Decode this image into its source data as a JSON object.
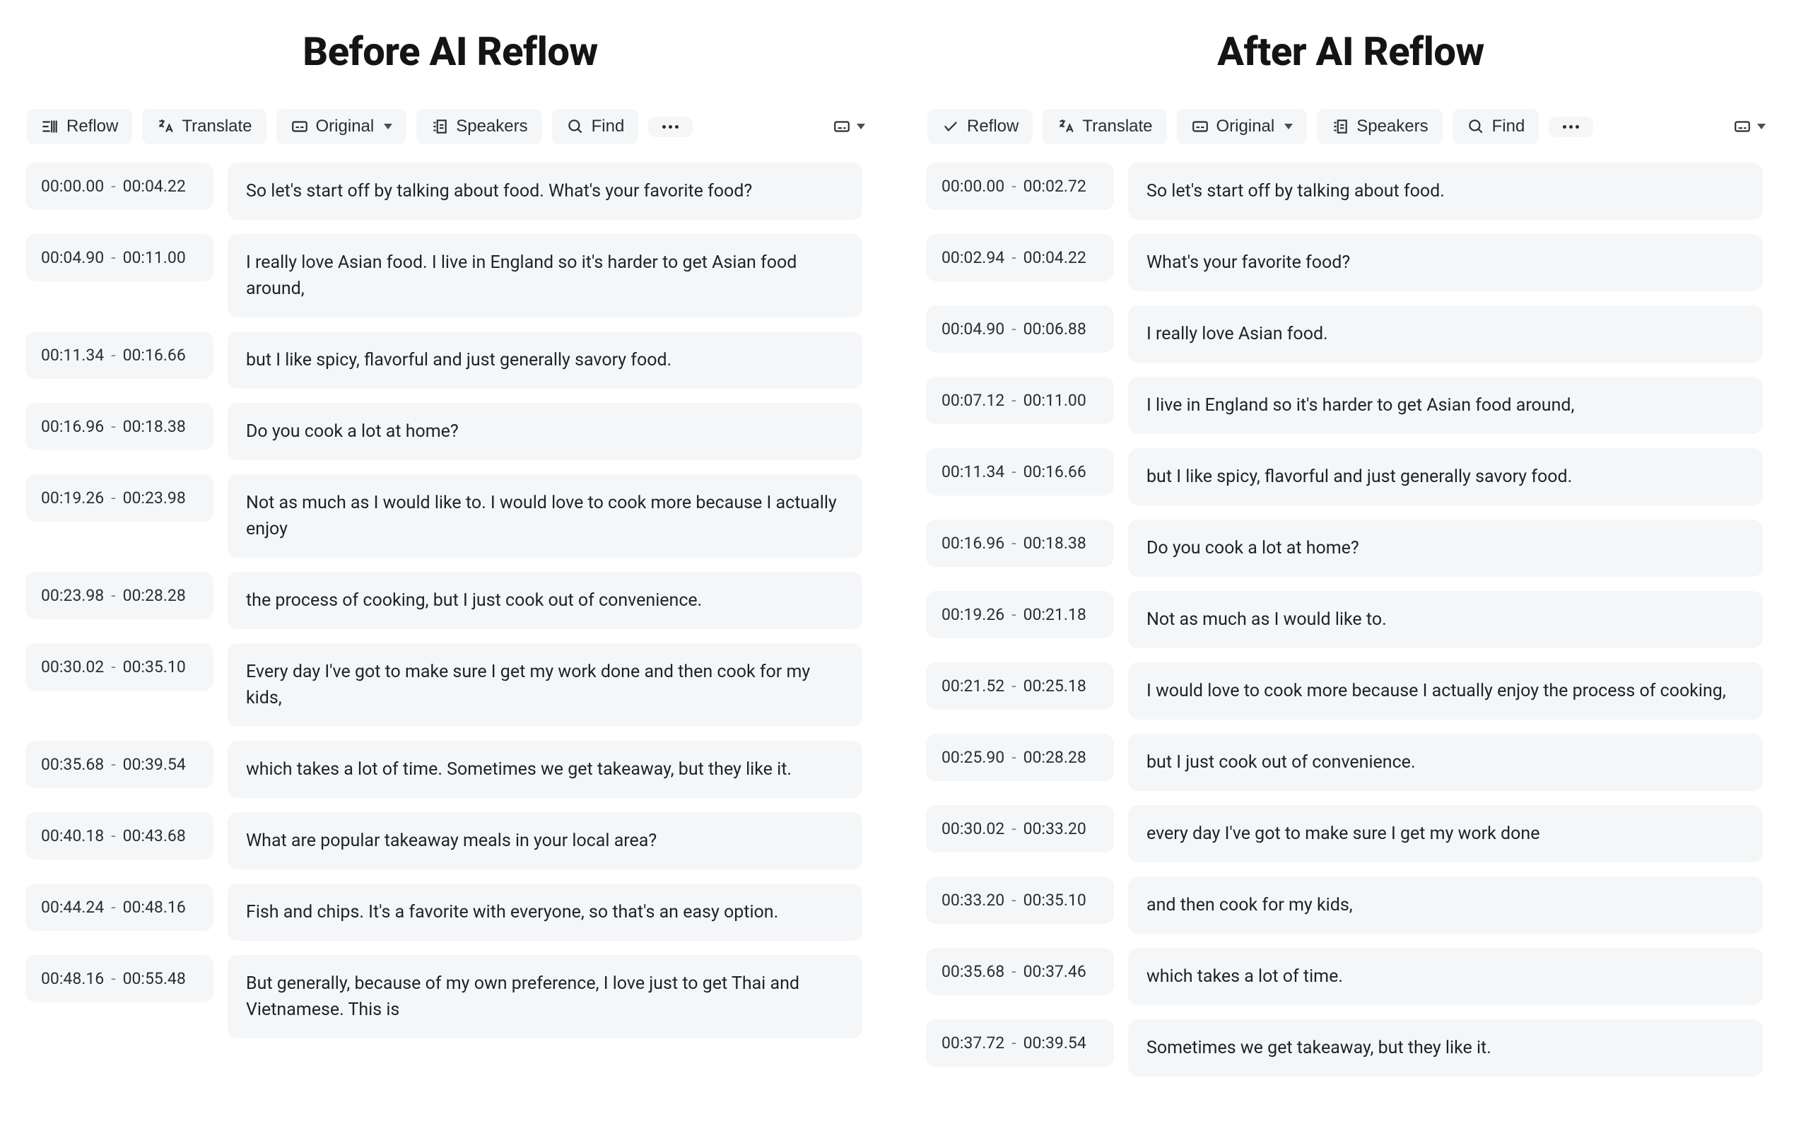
{
  "colors": {
    "panel_bg": "#f5f6f8",
    "text_primary": "#1f2226",
    "text_muted": "#7b818a",
    "scrollbar": "#9ca1a8",
    "page_bg": "#ffffff"
  },
  "left": {
    "heading": "Before AI Reflow",
    "toolbar": {
      "reflow": "Reflow",
      "translate": "Translate",
      "original": "Original",
      "speakers": "Speakers",
      "find": "Find"
    },
    "rows": [
      {
        "start": "00:00.00",
        "end": "00:04.22",
        "text": "So let's start off by talking about food. What's your favorite food?"
      },
      {
        "start": "00:04.90",
        "end": "00:11.00",
        "text": "I really love Asian food. I live in England so it's harder to get Asian food around,"
      },
      {
        "start": "00:11.34",
        "end": "00:16.66",
        "text": "but I like spicy, flavorful and just generally savory food."
      },
      {
        "start": "00:16.96",
        "end": "00:18.38",
        "text": "Do you cook a lot at home?"
      },
      {
        "start": "00:19.26",
        "end": "00:23.98",
        "text": "Not as much as I would like to. I would love to cook more because I actually enjoy"
      },
      {
        "start": "00:23.98",
        "end": "00:28.28",
        "text": "the process of cooking, but I just cook out of convenience."
      },
      {
        "start": "00:30.02",
        "end": "00:35.10",
        "text": "Every day I've got to make sure I get my work done and then cook for my kids,"
      },
      {
        "start": "00:35.68",
        "end": "00:39.54",
        "text": "which takes a lot of time. Sometimes we get takeaway, but they like it."
      },
      {
        "start": "00:40.18",
        "end": "00:43.68",
        "text": "What are popular takeaway meals in your local area?"
      },
      {
        "start": "00:44.24",
        "end": "00:48.16",
        "text": "Fish and chips. It's a favorite with everyone, so that's an easy option."
      },
      {
        "start": "00:48.16",
        "end": "00:55.48",
        "text": "But generally, because of my own preference, I love just to get Thai and Vietnamese. This is"
      }
    ]
  },
  "right": {
    "heading": "After AI Reflow",
    "toolbar": {
      "reflow": "Reflow",
      "translate": "Translate",
      "original": "Original",
      "speakers": "Speakers",
      "find": "Find"
    },
    "rows": [
      {
        "start": "00:00.00",
        "end": "00:02.72",
        "text": "So let's start off by talking about food."
      },
      {
        "start": "00:02.94",
        "end": "00:04.22",
        "text": "What's your favorite food?"
      },
      {
        "start": "00:04.90",
        "end": "00:06.88",
        "text": "I really love Asian food."
      },
      {
        "start": "00:07.12",
        "end": "00:11.00",
        "text": "I live in England so it's harder to get Asian food around,"
      },
      {
        "start": "00:11.34",
        "end": "00:16.66",
        "text": "but I like spicy, flavorful and just generally savory food."
      },
      {
        "start": "00:16.96",
        "end": "00:18.38",
        "text": "Do you cook a lot at home?"
      },
      {
        "start": "00:19.26",
        "end": "00:21.18",
        "text": "Not as much as I would like to."
      },
      {
        "start": "00:21.52",
        "end": "00:25.18",
        "text": "I would love to cook more because I actually enjoy the process of cooking,"
      },
      {
        "start": "00:25.90",
        "end": "00:28.28",
        "text": "but I just cook out of convenience."
      },
      {
        "start": "00:30.02",
        "end": "00:33.20",
        "text": "every day I've got to make sure I get my work done"
      },
      {
        "start": "00:33.20",
        "end": "00:35.10",
        "text": "and then cook for my kids,"
      },
      {
        "start": "00:35.68",
        "end": "00:37.46",
        "text": "which takes a lot of time."
      },
      {
        "start": "00:37.72",
        "end": "00:39.54",
        "text": "Sometimes we get takeaway, but they like it."
      }
    ]
  },
  "icons": {
    "reflow_lines": "reflow-icon",
    "reflow_check": "check-icon",
    "translate": "translate-icon",
    "original": "subtitle-icon",
    "speakers": "speakers-icon",
    "find": "search-icon",
    "more": "more-icon",
    "layout": "layout-icon"
  }
}
